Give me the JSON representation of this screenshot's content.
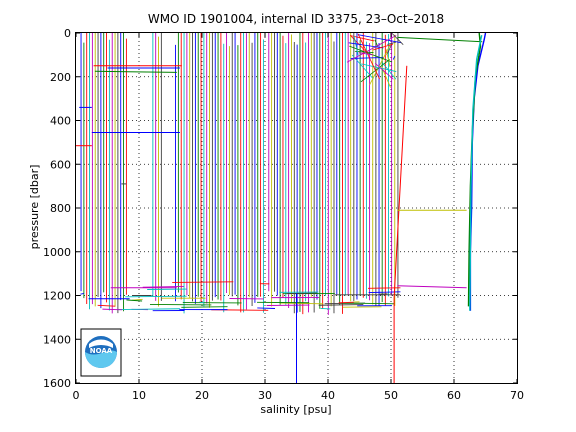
{
  "chart_data": {
    "type": "line",
    "title": "WMO ID 1901004, internal ID 3375, 23–Oct–2018",
    "xlabel": "salinity [psu]",
    "ylabel": "pressure [dbar]",
    "xlim": [
      0,
      70
    ],
    "ylim": [
      1600,
      0
    ],
    "y_reversed": true,
    "grid": true,
    "xticks": [
      "0",
      "10",
      "20",
      "30",
      "40",
      "50",
      "60",
      "70"
    ],
    "yticks": [
      "0",
      "200",
      "400",
      "600",
      "800",
      "1000",
      "1200",
      "1400",
      "1600"
    ],
    "colors": [
      "#0000ff",
      "#008000",
      "#ff0000",
      "#00bfbf",
      "#bf00bf",
      "#bfbf00",
      "#404040"
    ],
    "clusters": [
      {
        "x_start": 0.8,
        "x_end": 8.0,
        "step": 0.45,
        "pmin": 1180,
        "pmax": 1290
      },
      {
        "x_start": 12.2,
        "x_end": 13.6,
        "step": 0.45,
        "pmin": 1180,
        "pmax": 1260
      },
      {
        "x_start": 15.8,
        "x_end": 30.0,
        "step": 0.45,
        "pmin": 1180,
        "pmax": 1290
      },
      {
        "x_start": 30.6,
        "x_end": 43.2,
        "step": 0.45,
        "pmin": 1180,
        "pmax": 1290
      },
      {
        "x_start": 43.6,
        "x_end": 51.2,
        "step": 0.5,
        "pmin": 1200,
        "pmax": 1250
      }
    ],
    "profiles": [
      {
        "color": "#0000ff",
        "points": [
          [
            65.0,
            0
          ],
          [
            64.8,
            30
          ],
          [
            63.8,
            150
          ],
          [
            63.2,
            300
          ],
          [
            62.9,
            500
          ],
          [
            62.8,
            800
          ],
          [
            62.6,
            1000
          ],
          [
            62.6,
            1270
          ]
        ]
      },
      {
        "color": "#008000",
        "points": [
          [
            64.0,
            0
          ],
          [
            64.2,
            60
          ],
          [
            63.4,
            200
          ],
          [
            62.9,
            450
          ],
          [
            62.6,
            700
          ],
          [
            62.4,
            1000
          ],
          [
            62.3,
            1250
          ]
        ]
      },
      {
        "color": "#00bfbf",
        "points": [
          [
            64.4,
            10
          ],
          [
            63.6,
            120
          ],
          [
            63.0,
            350
          ],
          [
            62.7,
            700
          ],
          [
            62.5,
            1270
          ]
        ]
      }
    ],
    "annotations": [
      {
        "color": "#ff0000",
        "points": [
          [
            52.5,
            150
          ],
          [
            50.5,
            1210
          ],
          [
            50.5,
            1600
          ]
        ]
      },
      {
        "color": "#0000ff",
        "points": [
          [
            35.0,
            1190
          ],
          [
            35.0,
            1600
          ]
        ]
      },
      {
        "color": "#008000",
        "points": [
          [
            51.0,
            20
          ],
          [
            64.5,
            40
          ]
        ]
      },
      {
        "color": "#bfbf00",
        "points": [
          [
            51.0,
            810
          ],
          [
            62.0,
            810
          ]
        ]
      },
      {
        "color": "#bf00bf",
        "points": [
          [
            51.0,
            1155
          ],
          [
            62.0,
            1165
          ]
        ]
      },
      {
        "color": "#ff0000",
        "points": [
          [
            0.0,
            515
          ],
          [
            2.5,
            515
          ]
        ]
      },
      {
        "color": "#0000ff",
        "points": [
          [
            2.5,
            455
          ],
          [
            16.5,
            455
          ]
        ]
      },
      {
        "color": "#ff0000",
        "points": [
          [
            2.8,
            150
          ],
          [
            16.8,
            150
          ]
        ]
      },
      {
        "color": "#008000",
        "points": [
          [
            3.0,
            175
          ],
          [
            16.0,
            180
          ]
        ]
      },
      {
        "color": "#0000ff",
        "points": [
          [
            5.0,
            160
          ],
          [
            16.5,
            160
          ]
        ]
      },
      {
        "color": "#404040",
        "points": [
          [
            7.2,
            690
          ],
          [
            8.0,
            690
          ]
        ]
      },
      {
        "color": "#bf00bf",
        "points": [
          [
            5.5,
            1165
          ],
          [
            16.0,
            1165
          ]
        ]
      },
      {
        "color": "#0000ff",
        "points": [
          [
            2.0,
            1215
          ],
          [
            8.5,
            1215
          ]
        ]
      },
      {
        "color": "#008000",
        "points": [
          [
            8.0,
            1220
          ],
          [
            10.5,
            1225
          ]
        ]
      },
      {
        "color": "#404040",
        "points": [
          [
            9.0,
            1200
          ],
          [
            12.0,
            1200
          ]
        ]
      },
      {
        "color": "#0000ff",
        "points": [
          [
            0.5,
            340
          ],
          [
            2.5,
            340
          ]
        ]
      }
    ],
    "logo": {
      "text": "NOAA"
    }
  }
}
